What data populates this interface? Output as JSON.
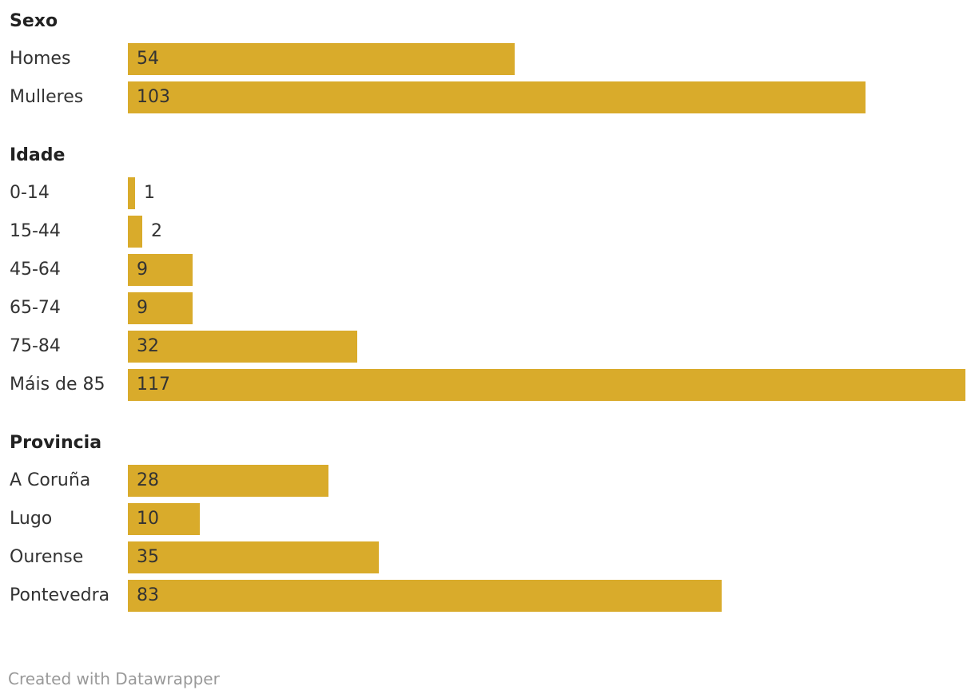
{
  "chart_data": {
    "type": "bar",
    "orientation": "horizontal",
    "groups": [
      {
        "title": "Sexo",
        "categories": [
          "Homes",
          "Mulleres"
        ],
        "values": [
          54,
          103
        ]
      },
      {
        "title": "Idade",
        "categories": [
          "0-14",
          "15-44",
          "45-64",
          "65-74",
          "75-84",
          "Máis de 85"
        ],
        "values": [
          1,
          2,
          9,
          9,
          32,
          117
        ]
      },
      {
        "title": "Provincia",
        "categories": [
          "A Coruña",
          "Lugo",
          "Ourense",
          "Pontevedra"
        ],
        "values": [
          28,
          10,
          35,
          83
        ]
      }
    ],
    "xlim": [
      0,
      117
    ],
    "grid": false,
    "bar_color": "#d9ab2b"
  },
  "footer": {
    "credit": "Created with Datawrapper"
  }
}
